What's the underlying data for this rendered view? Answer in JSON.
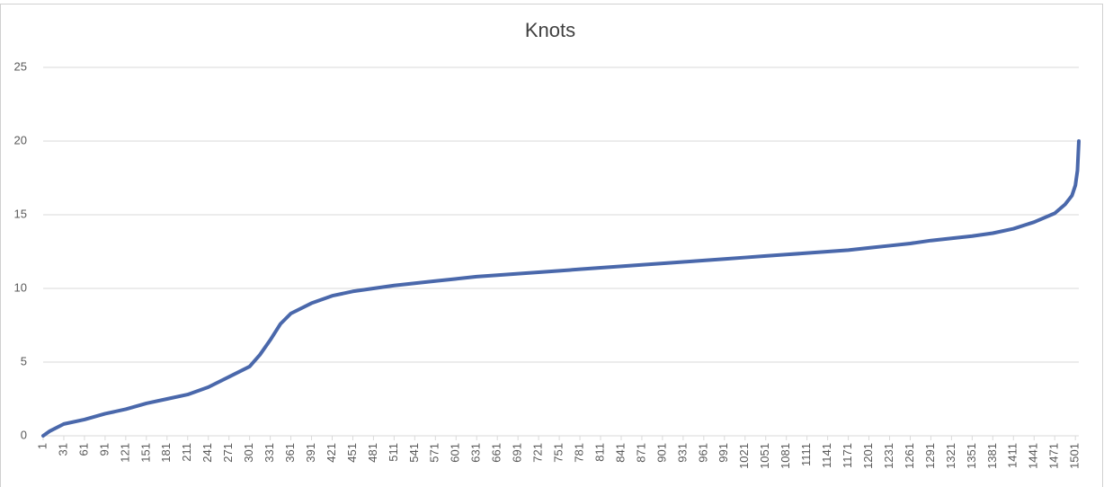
{
  "chart_data": {
    "type": "line",
    "title": "Knots",
    "x": [
      1,
      10,
      31,
      61,
      91,
      121,
      151,
      181,
      211,
      241,
      271,
      301,
      316,
      331,
      346,
      361,
      391,
      421,
      451,
      481,
      511,
      541,
      571,
      601,
      631,
      661,
      691,
      721,
      751,
      781,
      811,
      841,
      871,
      901,
      931,
      961,
      991,
      1021,
      1051,
      1081,
      1111,
      1141,
      1171,
      1201,
      1231,
      1261,
      1291,
      1321,
      1351,
      1381,
      1411,
      1441,
      1471,
      1486,
      1496,
      1501,
      1504,
      1506
    ],
    "series": [
      {
        "name": "Knots",
        "color": "#4a68ab",
        "values": [
          0,
          0.3,
          0.8,
          1.1,
          1.5,
          1.8,
          2.2,
          2.5,
          2.8,
          3.3,
          4.0,
          4.7,
          5.5,
          6.5,
          7.6,
          8.3,
          9.0,
          9.5,
          9.8,
          10.0,
          10.2,
          10.35,
          10.5,
          10.65,
          10.8,
          10.9,
          11.0,
          11.1,
          11.2,
          11.3,
          11.4,
          11.5,
          11.6,
          11.7,
          11.8,
          11.9,
          12.0,
          12.1,
          12.2,
          12.3,
          12.4,
          12.5,
          12.6,
          12.75,
          12.9,
          13.05,
          13.25,
          13.4,
          13.55,
          13.75,
          14.05,
          14.5,
          15.1,
          15.7,
          16.3,
          17.0,
          18.0,
          20.0
        ]
      }
    ],
    "xlim": [
      1,
      1506
    ],
    "xticks": [
      1,
      31,
      61,
      91,
      121,
      151,
      181,
      211,
      241,
      271,
      301,
      331,
      361,
      391,
      421,
      451,
      481,
      511,
      541,
      571,
      601,
      631,
      661,
      691,
      721,
      751,
      781,
      811,
      841,
      871,
      901,
      931,
      961,
      991,
      1021,
      1051,
      1081,
      1111,
      1141,
      1171,
      1201,
      1231,
      1261,
      1291,
      1321,
      1351,
      1381,
      1411,
      1441,
      1471,
      1501
    ],
    "ylim": [
      0,
      25
    ],
    "yticks": [
      0,
      5,
      10,
      15,
      20,
      25
    ],
    "grid": true
  }
}
